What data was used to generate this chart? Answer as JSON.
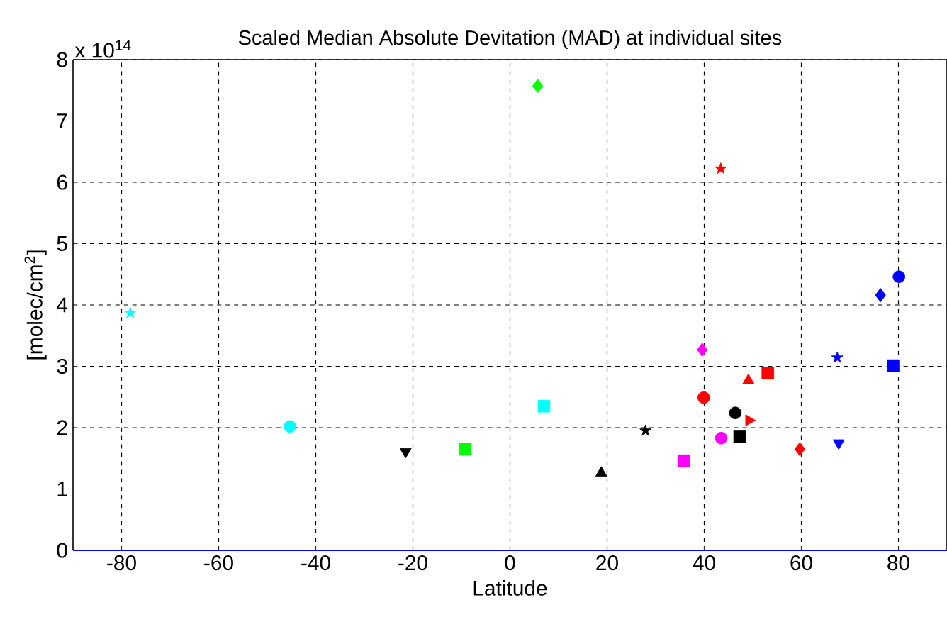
{
  "chart_data": {
    "type": "scatter",
    "title": "Scaled Median Absolute Devitation (MAD) at individual sites",
    "xlabel": "Latitude",
    "ylabel": "[molec/cm$^{2}$]",
    "annotations": [
      "x 10$^{14}$"
    ],
    "xlim": [
      -90,
      90
    ],
    "xticks": [
      -80,
      -60,
      -40,
      -20,
      0,
      20,
      40,
      60,
      80
    ],
    "ylim": [
      0,
      8
    ],
    "yticks": [
      0,
      1,
      2,
      3,
      4,
      5,
      6,
      7,
      8
    ],
    "grid": true,
    "series": [
      {
        "color": "#00ffff",
        "marker": "star",
        "x": [
          -78.2
        ],
        "values": [
          3.87
        ]
      },
      {
        "color": "#00ffff",
        "marker": "circle",
        "x": [
          -45.3
        ],
        "values": [
          2.02
        ]
      },
      {
        "color": "#000000",
        "marker": "triangle-down",
        "x": [
          -21.5
        ],
        "values": [
          1.61
        ]
      },
      {
        "color": "#00ff00",
        "marker": "square",
        "x": [
          -9.2
        ],
        "values": [
          1.65
        ]
      },
      {
        "color": "#00ff00",
        "marker": "diamond",
        "x": [
          5.7
        ],
        "values": [
          7.57
        ]
      },
      {
        "color": "#00ffff",
        "marker": "square",
        "x": [
          7.0
        ],
        "values": [
          2.35
        ]
      },
      {
        "color": "#000000",
        "marker": "triangle",
        "x": [
          18.8
        ],
        "values": [
          1.26
        ]
      },
      {
        "color": "#000000",
        "marker": "star",
        "x": [
          27.9
        ],
        "values": [
          1.95
        ]
      },
      {
        "color": "#ff00ff",
        "marker": "square",
        "x": [
          35.8
        ],
        "values": [
          1.46
        ]
      },
      {
        "color": "#ff00ff",
        "marker": "diamond",
        "x": [
          39.6
        ],
        "values": [
          3.27
        ]
      },
      {
        "color": "#ff0000",
        "marker": "circle",
        "x": [
          39.9
        ],
        "values": [
          2.49
        ]
      },
      {
        "color": "#ff0000",
        "marker": "star",
        "x": [
          43.4
        ],
        "values": [
          6.22
        ]
      },
      {
        "color": "#ff00ff",
        "marker": "circle",
        "x": [
          43.5
        ],
        "values": [
          1.83
        ]
      },
      {
        "color": "#000000",
        "marker": "circle",
        "x": [
          46.4
        ],
        "values": [
          2.24
        ]
      },
      {
        "color": "#000000",
        "marker": "square",
        "x": [
          47.3
        ],
        "values": [
          1.85
        ]
      },
      {
        "color": "#ff0000",
        "marker": "triangle-right",
        "x": [
          49.2
        ],
        "values": [
          2.12
        ]
      },
      {
        "color": "#ff0000",
        "marker": "triangle",
        "x": [
          49.1
        ],
        "values": [
          2.77
        ]
      },
      {
        "color": "#ff0000",
        "marker": "square",
        "x": [
          53.1
        ],
        "values": [
          2.89
        ]
      },
      {
        "color": "#ff0000",
        "marker": "diamond",
        "x": [
          59.7
        ],
        "values": [
          1.65
        ]
      },
      {
        "color": "#0000ff",
        "marker": "star",
        "x": [
          67.4
        ],
        "values": [
          3.14
        ]
      },
      {
        "color": "#0000ff",
        "marker": "triangle-down",
        "x": [
          67.7
        ],
        "values": [
          1.75
        ]
      },
      {
        "color": "#0000ff",
        "marker": "diamond",
        "x": [
          76.3
        ],
        "values": [
          4.16
        ]
      },
      {
        "color": "#0000ff",
        "marker": "square",
        "x": [
          78.9
        ],
        "values": [
          3.01
        ]
      },
      {
        "color": "#0000ff",
        "marker": "circle",
        "x": [
          80.1
        ],
        "values": [
          4.46
        ]
      }
    ]
  }
}
